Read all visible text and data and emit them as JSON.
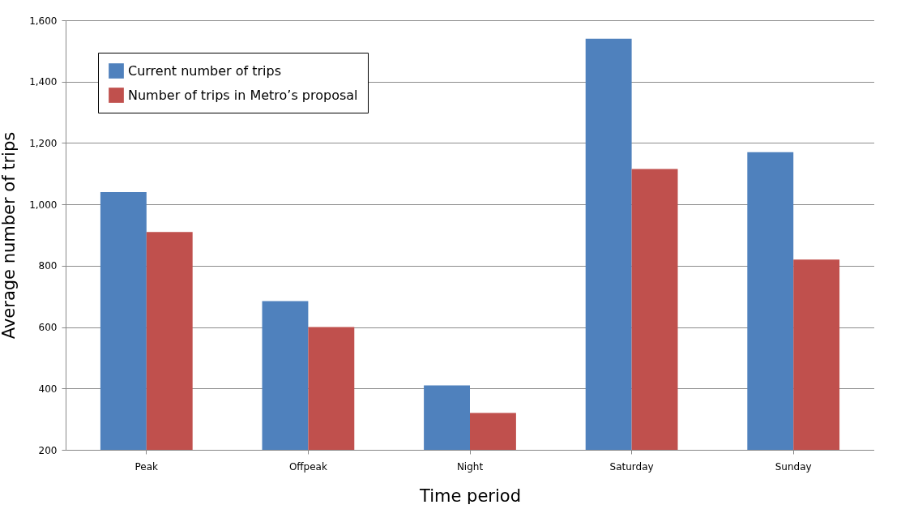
{
  "chart_data": {
    "type": "bar",
    "xlabel": "Time period",
    "ylabel": "Average number of trips",
    "categories": [
      "Peak",
      "Offpeak",
      "Night",
      "Saturday",
      "Sunday"
    ],
    "series": [
      {
        "name": "Current number of trips",
        "color": "#4f81bd",
        "values": [
          1040,
          685,
          410,
          1540,
          1170
        ]
      },
      {
        "name": "Number of trips in Metro’s proposal",
        "color": "#c0504d",
        "values": [
          910,
          600,
          320,
          1115,
          820
        ]
      }
    ],
    "ylim": [
      200,
      1600
    ],
    "yticks": [
      {
        "value": 200,
        "label": "200"
      },
      {
        "value": 400,
        "label": "400"
      },
      {
        "value": 600,
        "label": "600"
      },
      {
        "value": 800,
        "label": "800"
      },
      {
        "value": 1000,
        "label": "1,000"
      },
      {
        "value": 1200,
        "label": "1,200"
      },
      {
        "value": 1400,
        "label": "1,400"
      },
      {
        "value": 1600,
        "label": "1,600"
      }
    ],
    "grid": "y",
    "legend": "top left"
  }
}
